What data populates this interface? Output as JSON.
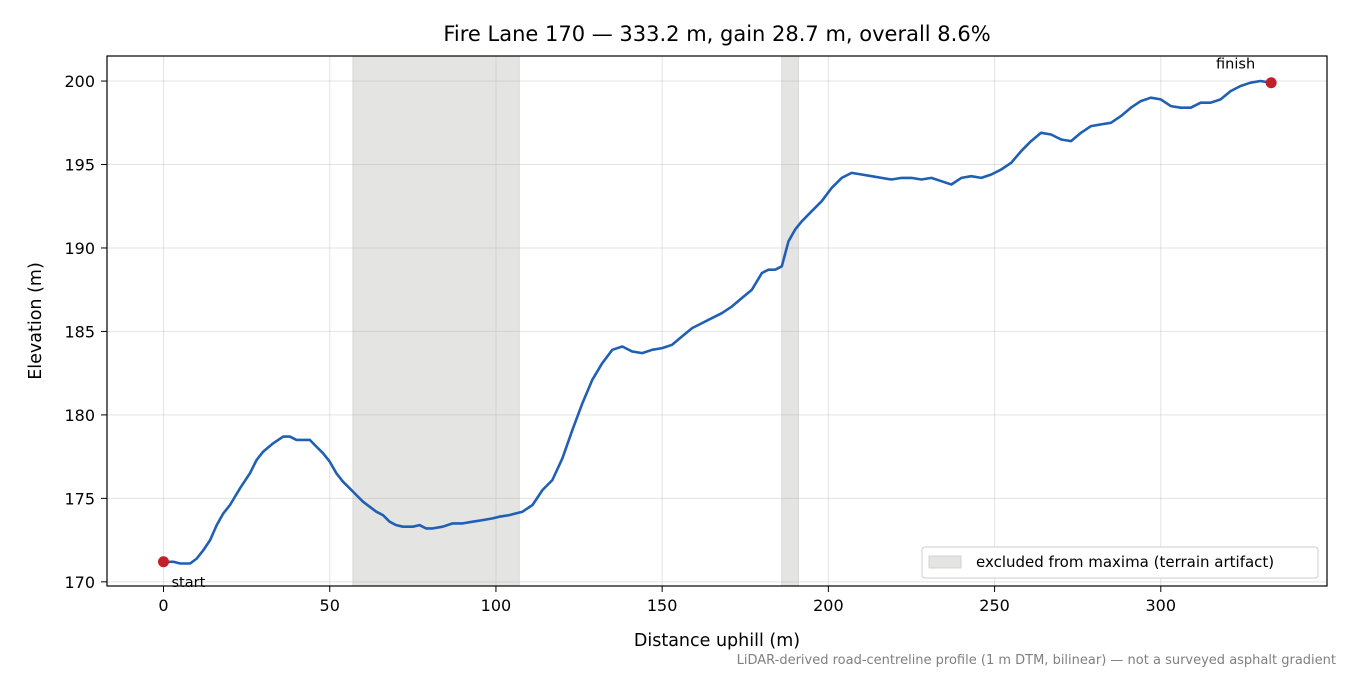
{
  "chart_data": {
    "type": "line",
    "title": "Fire Lane 170 — 333.2 m, gain 28.7 m, overall 8.6%",
    "xlabel": "Distance uphill (m)",
    "ylabel": "Elevation (m)",
    "xlim": [
      -17,
      350
    ],
    "ylim": [
      169.75,
      201.5
    ],
    "xticks": [
      0,
      50,
      100,
      150,
      200,
      250,
      300
    ],
    "yticks": [
      170,
      175,
      180,
      185,
      190,
      195,
      200
    ],
    "xtick_labels": [
      "0",
      "50",
      "100",
      "150",
      "200",
      "250",
      "300"
    ],
    "ytick_labels": [
      "170",
      "175",
      "180",
      "185",
      "190",
      "195",
      "200"
    ],
    "grid": true,
    "line_color": "#1f5fb4",
    "marker_color": "#c0202a",
    "excluded_fill": "#e4e4e3",
    "excluded_regions": [
      [
        57,
        107
      ],
      [
        186,
        191
      ]
    ],
    "series": [
      {
        "x": [
          0,
          3,
          5,
          8,
          10,
          12,
          14,
          16,
          18,
          20,
          23,
          26,
          28,
          30,
          33,
          36,
          38,
          40,
          42,
          44,
          46,
          48,
          50,
          52,
          54,
          56,
          58,
          60,
          62,
          64,
          66,
          68,
          70,
          72,
          75,
          77,
          79,
          81,
          84,
          87,
          90,
          93,
          96,
          99,
          101,
          104,
          106,
          108,
          111,
          114,
          117,
          120,
          123,
          126,
          129,
          132,
          135,
          138,
          141,
          144,
          147,
          150,
          153,
          156,
          159,
          162,
          165,
          168,
          171,
          174,
          177,
          180,
          182,
          184,
          186,
          188,
          190,
          192,
          195,
          198,
          201,
          204,
          207,
          210,
          213,
          216,
          219,
          222,
          225,
          228,
          231,
          234,
          237,
          240,
          243,
          246,
          249,
          252,
          255,
          258,
          261,
          264,
          267,
          270,
          273,
          276,
          279,
          282,
          285,
          288,
          291,
          294,
          297,
          300,
          303,
          306,
          309,
          312,
          315,
          318,
          321,
          324,
          327,
          330,
          333.2
        ],
        "y": [
          171.2,
          171.2,
          171.1,
          171.1,
          171.4,
          171.9,
          172.5,
          173.4,
          174.1,
          174.6,
          175.6,
          176.5,
          177.3,
          177.8,
          178.3,
          178.7,
          178.7,
          178.5,
          178.5,
          178.5,
          178.1,
          177.7,
          177.2,
          176.5,
          176.0,
          175.6,
          175.2,
          174.8,
          174.5,
          174.2,
          174.0,
          173.6,
          173.4,
          173.3,
          173.3,
          173.4,
          173.2,
          173.2,
          173.3,
          173.5,
          173.5,
          173.6,
          173.7,
          173.8,
          173.9,
          174.0,
          174.1,
          174.2,
          174.6,
          175.5,
          176.1,
          177.4,
          179.1,
          180.7,
          182.1,
          183.1,
          183.9,
          184.1,
          183.8,
          183.7,
          183.9,
          184.0,
          184.2,
          184.7,
          185.2,
          185.5,
          185.8,
          186.1,
          186.5,
          187.0,
          187.5,
          188.5,
          188.7,
          188.7,
          188.9,
          190.4,
          191.1,
          191.6,
          192.2,
          192.8,
          193.6,
          194.2,
          194.5,
          194.4,
          194.3,
          194.2,
          194.1,
          194.2,
          194.2,
          194.1,
          194.2,
          194.0,
          193.8,
          194.2,
          194.3,
          194.2,
          194.4,
          194.7,
          195.1,
          195.8,
          196.4,
          196.9,
          196.8,
          196.5,
          196.4,
          196.9,
          197.3,
          197.4,
          197.5,
          197.9,
          198.4,
          198.8,
          199.0,
          198.9,
          198.5,
          198.4,
          198.4,
          198.7,
          198.7,
          198.9,
          199.4,
          199.7,
          199.9,
          200.0,
          199.9
        ]
      }
    ],
    "points": [
      {
        "x": 0,
        "y": 171.2,
        "label": "start",
        "position": "below-right"
      },
      {
        "x": 333.2,
        "y": 199.9,
        "label": "finish",
        "position": "above-left"
      }
    ],
    "legend": {
      "placement": "lower-right",
      "entries": [
        {
          "label": "excluded from maxima (terrain artifact)",
          "swatch": "excluded_region"
        }
      ]
    },
    "footnote": "LiDAR-derived road-centreline profile (1 m DTM, bilinear) — not a surveyed asphalt gradient"
  }
}
